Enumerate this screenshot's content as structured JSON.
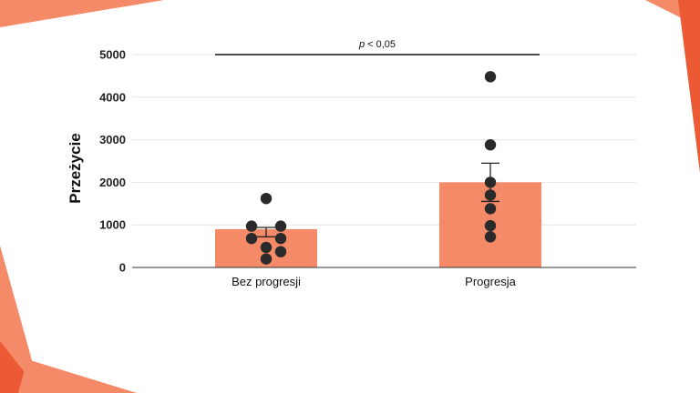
{
  "colors": {
    "bar": "#f58a68",
    "accent_light": "#f58a68",
    "accent_dark": "#ec5a35",
    "point": "#2a2a2a",
    "grid": "#e6e6e6",
    "axis": "#333333"
  },
  "chart_data": {
    "type": "bar",
    "title": "",
    "xlabel": "",
    "ylabel": "Przeżycie",
    "ylim": [
      0,
      5000
    ],
    "yticks": [
      0,
      1000,
      2000,
      3000,
      4000,
      5000
    ],
    "ytick_labels": [
      "0",
      "1000",
      "2000",
      "3000",
      "4000",
      "5000"
    ],
    "grid": true,
    "categories": [
      "Bez progresji",
      "Progresja"
    ],
    "values": [
      900,
      2000
    ],
    "error": [
      {
        "low": 720,
        "high": 940
      },
      {
        "low": 1550,
        "high": 2450
      }
    ],
    "points": [
      [
        1620,
        970,
        970,
        680,
        680,
        470,
        370,
        200
      ],
      [
        4480,
        2880,
        2000,
        1700,
        1380,
        980,
        720
      ]
    ],
    "significance": {
      "y": 5000,
      "p_symbol": "p",
      "p_rest": " < 0,05"
    }
  }
}
